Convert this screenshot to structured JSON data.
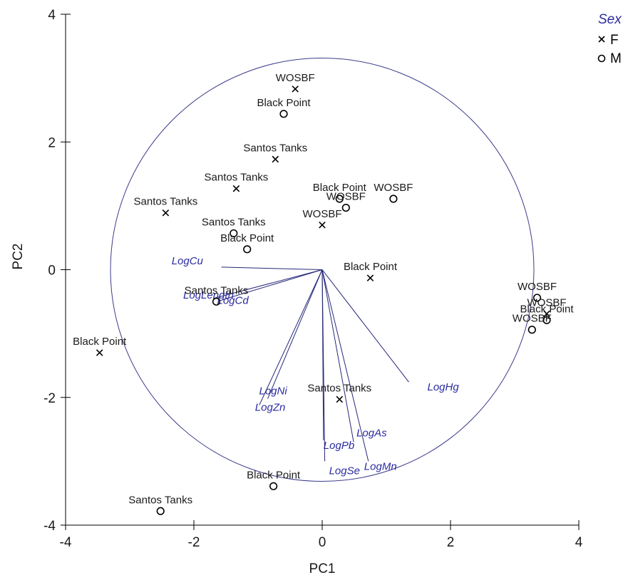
{
  "chart_data": {
    "type": "scatter",
    "xlabel": "PC1",
    "ylabel": "PC2",
    "xlim": [
      -4,
      4
    ],
    "ylim": [
      -4,
      4
    ],
    "x_ticks": [
      -4,
      -2,
      0,
      2,
      4
    ],
    "y_ticks": [
      -4,
      -2,
      0,
      2,
      4
    ],
    "legend": {
      "title": "Sex",
      "position": "top-right",
      "entries": [
        {
          "label": "F",
          "marker": "cross"
        },
        {
          "label": "M",
          "marker": "circle"
        }
      ]
    },
    "correlation_circle": {
      "center": [
        0,
        0
      ],
      "radius": 3.3
    },
    "points": [
      {
        "label": "WOSBF",
        "sex": "F",
        "x": -0.42,
        "y": 2.83
      },
      {
        "label": "Black Point",
        "sex": "M",
        "x": -0.6,
        "y": 2.44
      },
      {
        "label": "Santos Tanks",
        "sex": "F",
        "x": -0.73,
        "y": 1.73
      },
      {
        "label": "Santos Tanks",
        "sex": "F",
        "x": -1.34,
        "y": 1.27
      },
      {
        "label": "Santos Tanks",
        "sex": "F",
        "x": -2.44,
        "y": 0.89
      },
      {
        "label": "Black Point",
        "sex": "M",
        "x": 0.27,
        "y": 1.11
      },
      {
        "label": "WOSBF",
        "sex": "M",
        "x": 0.37,
        "y": 0.97
      },
      {
        "label": "WOSBF",
        "sex": "M",
        "x": 1.11,
        "y": 1.11
      },
      {
        "label": "WOSBF",
        "sex": "F",
        "x": 0.0,
        "y": 0.7
      },
      {
        "label": "Santos Tanks",
        "sex": "M",
        "x": -1.38,
        "y": 0.57
      },
      {
        "label": "Black Point",
        "sex": "M",
        "x": -1.17,
        "y": 0.32
      },
      {
        "label": "Black Point",
        "sex": "F",
        "x": 0.75,
        "y": -0.13
      },
      {
        "label": "Santos Tanks",
        "sex": "M",
        "x": -1.65,
        "y": -0.5
      },
      {
        "label": "WOSBF",
        "sex": "M",
        "x": 3.35,
        "y": -0.44
      },
      {
        "label": "WOSBF",
        "sex": "F",
        "x": 3.5,
        "y": -0.69
      },
      {
        "label": "Black Point",
        "sex": "M",
        "x": 3.5,
        "y": -0.79
      },
      {
        "label": "WOSBF",
        "sex": "M",
        "x": 3.27,
        "y": -0.94
      },
      {
        "label": "Black Point",
        "sex": "F",
        "x": -3.47,
        "y": -1.3
      },
      {
        "label": "Santos Tanks",
        "sex": "F",
        "x": 0.27,
        "y": -2.03
      },
      {
        "label": "Black Point",
        "sex": "M",
        "x": -0.76,
        "y": -3.39
      },
      {
        "label": "Santos Tanks",
        "sex": "M",
        "x": -2.52,
        "y": -3.78
      }
    ],
    "vectors": [
      {
        "name": "LogCu",
        "x": -1.57,
        "y": 0.04
      },
      {
        "name": "LogLength",
        "x": -1.7,
        "y": -0.45
      },
      {
        "name": "LogCd",
        "x": -1.55,
        "y": -0.47
      },
      {
        "name": "LogNi",
        "x": -0.85,
        "y": -2.02
      },
      {
        "name": "LogZn",
        "x": -0.98,
        "y": -2.12
      },
      {
        "name": "LogPb",
        "x": 0.02,
        "y": -2.67
      },
      {
        "name": "LogSe",
        "x": 0.04,
        "y": -3.0
      },
      {
        "name": "LogAs",
        "x": 0.49,
        "y": -2.7
      },
      {
        "name": "LogMn",
        "x": 0.72,
        "y": -3.0
      },
      {
        "name": "LogHg",
        "x": 1.35,
        "y": -1.76
      }
    ]
  }
}
